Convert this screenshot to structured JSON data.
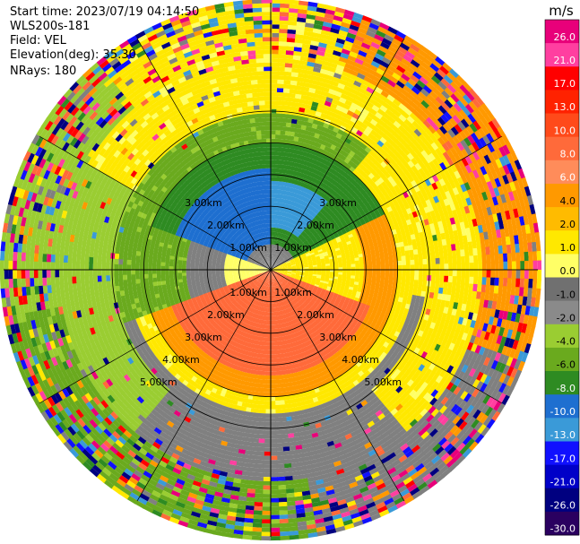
{
  "header": {
    "start_time": "Start time: 2023/07/19 04:14:50",
    "instrument": "WLS200s-181",
    "field": "Field: VEL",
    "elevation": "Elevation(deg): 35.30",
    "nrays": "NRays: 180"
  },
  "colorbar": {
    "unit_label": "m/s",
    "ticks": [
      "26.0",
      "21.0",
      "17.0",
      "13.0",
      "10.0",
      "8.0",
      "6.0",
      "4.0",
      "2.0",
      "1.0",
      "0.0",
      "-1.0",
      "-2.0",
      "-4.0",
      "-6.0",
      "-8.0",
      "-10.0",
      "-13.0",
      "-17.0",
      "-21.0",
      "-26.0",
      "-30.0"
    ],
    "colors": [
      "#e8007a",
      "#ff3fa0",
      "#ff0000",
      "#ff2200",
      "#ff4a1a",
      "#ff6a3a",
      "#ff8c5a",
      "#ff9900",
      "#ffbb00",
      "#ffe800",
      "#ffff66",
      "#707070",
      "#8a8a8a",
      "#9acd32",
      "#6aaa1e",
      "#2e8b22",
      "#1e6fd0",
      "#3a9ad8",
      "#1010ff",
      "#0000c8",
      "#000080",
      "#2a0060"
    ]
  },
  "chart_data": {
    "type": "heatmap",
    "title": "",
    "range_labels": [
      "1.00km",
      "2.00km",
      "3.00km",
      "4.00km",
      "5.00km"
    ],
    "range_rings_km": [
      1,
      2,
      3,
      4,
      5
    ],
    "max_range_km": 5.0,
    "spokes_deg": [
      0,
      30,
      60,
      90,
      120,
      150,
      180,
      210,
      240,
      270,
      300,
      330
    ],
    "dominant_pattern": [
      {
        "region": "north-west inner",
        "value": -8.0
      },
      {
        "region": "north ring",
        "value": -4.0
      },
      {
        "region": "south inner",
        "value": 8.0
      },
      {
        "region": "east",
        "value": 4.0
      },
      {
        "region": "outer ring",
        "value": 2.0
      }
    ]
  }
}
